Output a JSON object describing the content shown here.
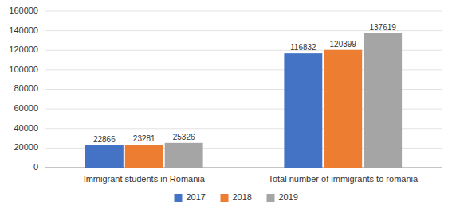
{
  "chart_data": {
    "type": "bar",
    "categories": [
      "Immigrant students in Romania",
      "Total number of immigrants to romania"
    ],
    "series": [
      {
        "name": "2017",
        "color": "#4472C4",
        "values": [
          22866,
          116832
        ]
      },
      {
        "name": "2018",
        "color": "#ED7D31",
        "values": [
          23281,
          120399
        ]
      },
      {
        "name": "2019",
        "color": "#A5A5A5",
        "values": [
          25326,
          137619
        ]
      }
    ],
    "ylim": [
      0,
      160000
    ],
    "yticks": [
      0,
      20000,
      40000,
      60000,
      80000,
      100000,
      120000,
      140000,
      160000
    ],
    "grid": true,
    "legend": "bottom",
    "data_labels": true
  }
}
